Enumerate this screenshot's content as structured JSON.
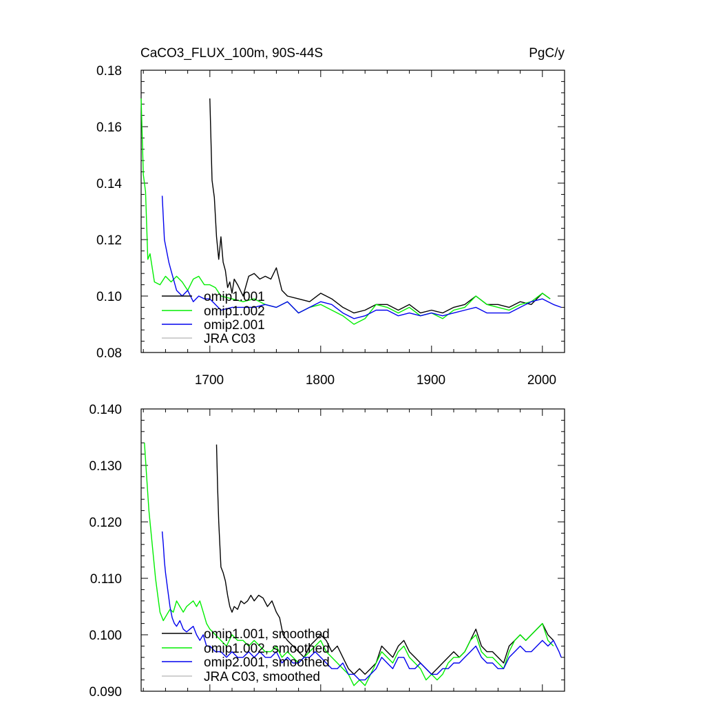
{
  "colors": {
    "omip1_001": "#000000",
    "omip1_002": "#00ee00",
    "omip2_001": "#0000ee",
    "jra_c03": "#c0c0c0"
  },
  "chart_data": [
    {
      "type": "line",
      "title": "CaCO3_FLUX_100m, 90S-44S",
      "units": "PgC/y",
      "xlim": [
        1638,
        2020
      ],
      "ylim": [
        0.08,
        0.18
      ],
      "yticks": [
        "0.08",
        "0.10",
        "0.12",
        "0.14",
        "0.16",
        "0.18"
      ],
      "xticks": [
        "1700",
        "1800",
        "1900",
        "2000"
      ],
      "grid": false,
      "legend_position": "bottom-left",
      "legend": [
        "omip1.001",
        "omip1.002",
        "omip2.001",
        "JRA C03"
      ],
      "series": [
        {
          "name": "omip1.001",
          "color": "#000000",
          "x": [
            1700,
            1702,
            1704,
            1706,
            1708,
            1710,
            1712,
            1714,
            1716,
            1718,
            1720,
            1722,
            1725,
            1730,
            1735,
            1740,
            1745,
            1750,
            1755,
            1760,
            1765,
            1770,
            1780,
            1790,
            1800,
            1810,
            1820,
            1830,
            1840,
            1850,
            1860,
            1870,
            1880,
            1890,
            1900,
            1910,
            1920,
            1930,
            1940,
            1950,
            1960,
            1970,
            1980,
            1990,
            2000,
            2007
          ],
          "y": [
            0.17,
            0.141,
            0.135,
            0.121,
            0.113,
            0.121,
            0.112,
            0.109,
            0.103,
            0.105,
            0.101,
            0.106,
            0.104,
            0.1,
            0.107,
            0.108,
            0.106,
            0.107,
            0.106,
            0.11,
            0.102,
            0.1,
            0.099,
            0.098,
            0.101,
            0.099,
            0.096,
            0.094,
            0.095,
            0.097,
            0.097,
            0.095,
            0.097,
            0.094,
            0.095,
            0.094,
            0.096,
            0.097,
            0.1,
            0.097,
            0.097,
            0.096,
            0.098,
            0.097,
            0.101,
            0.099
          ]
        },
        {
          "name": "omip1.002",
          "color": "#00ee00",
          "x": [
            1638,
            1640,
            1642,
            1644,
            1646,
            1648,
            1650,
            1655,
            1660,
            1665,
            1670,
            1675,
            1680,
            1685,
            1690,
            1695,
            1700,
            1705,
            1710,
            1720,
            1730,
            1740,
            1750,
            1760,
            1770,
            1780,
            1790,
            1800,
            1810,
            1820,
            1830,
            1840,
            1850,
            1860,
            1870,
            1880,
            1890,
            1900,
            1910,
            1920,
            1930,
            1940,
            1950,
            1960,
            1970,
            1980,
            1990,
            2000,
            2007
          ],
          "y": [
            0.17,
            0.143,
            0.137,
            0.113,
            0.115,
            0.11,
            0.105,
            0.104,
            0.107,
            0.105,
            0.107,
            0.105,
            0.102,
            0.106,
            0.107,
            0.104,
            0.104,
            0.103,
            0.1,
            0.099,
            0.098,
            0.099,
            0.097,
            0.096,
            0.098,
            0.094,
            0.096,
            0.097,
            0.095,
            0.093,
            0.09,
            0.092,
            0.097,
            0.096,
            0.094,
            0.096,
            0.093,
            0.094,
            0.092,
            0.095,
            0.096,
            0.1,
            0.097,
            0.096,
            0.095,
            0.097,
            0.098,
            0.101,
            0.099
          ]
        },
        {
          "name": "omip2.001",
          "color": "#0000ee",
          "x": [
            1657,
            1659,
            1661,
            1663,
            1665,
            1670,
            1675,
            1680,
            1685,
            1690,
            1695,
            1700,
            1710,
            1720,
            1730,
            1740,
            1750,
            1760,
            1770,
            1780,
            1790,
            1800,
            1810,
            1820,
            1830,
            1840,
            1850,
            1860,
            1870,
            1880,
            1890,
            1900,
            1910,
            1920,
            1930,
            1940,
            1950,
            1960,
            1970,
            1980,
            1990,
            2000,
            2010,
            2017
          ],
          "y": [
            0.1355,
            0.12,
            0.116,
            0.112,
            0.109,
            0.102,
            0.1,
            0.102,
            0.098,
            0.1,
            0.099,
            0.099,
            0.095,
            0.096,
            0.096,
            0.096,
            0.097,
            0.096,
            0.098,
            0.094,
            0.096,
            0.098,
            0.097,
            0.094,
            0.092,
            0.093,
            0.095,
            0.095,
            0.093,
            0.094,
            0.093,
            0.094,
            0.093,
            0.094,
            0.095,
            0.096,
            0.094,
            0.094,
            0.094,
            0.096,
            0.098,
            0.099,
            0.097,
            0.096
          ]
        }
      ]
    },
    {
      "type": "line",
      "xlim": [
        1638,
        2020
      ],
      "ylim": [
        0.09,
        0.14
      ],
      "yticks": [
        "0.090",
        "0.100",
        "0.110",
        "0.120",
        "0.130",
        "0.140"
      ],
      "grid": false,
      "legend_position": "bottom-left",
      "legend": [
        "omip1.001, smoothed",
        "omip1.002, smoothed",
        "omip2.001, smoothed",
        "JRA C03, smoothed"
      ],
      "series": [
        {
          "name": "omip1.001, smoothed",
          "color": "#000000",
          "x": [
            1706,
            1707,
            1708,
            1709,
            1710,
            1712,
            1714,
            1716,
            1718,
            1720,
            1722,
            1725,
            1728,
            1731,
            1734,
            1737,
            1740,
            1744,
            1748,
            1752,
            1756,
            1760,
            1763,
            1766,
            1770,
            1775,
            1780,
            1785,
            1790,
            1795,
            1800,
            1805,
            1810,
            1815,
            1820,
            1825,
            1830,
            1835,
            1840,
            1845,
            1850,
            1855,
            1860,
            1865,
            1870,
            1875,
            1880,
            1885,
            1890,
            1895,
            1900,
            1905,
            1910,
            1915,
            1920,
            1925,
            1930,
            1935,
            1940,
            1945,
            1950,
            1955,
            1960,
            1965,
            1970,
            1975,
            1980,
            1985,
            1990,
            1995,
            2000,
            2005,
            2010
          ],
          "y": [
            0.1337,
            0.126,
            0.12,
            0.116,
            0.112,
            0.111,
            0.1095,
            0.107,
            0.105,
            0.104,
            0.105,
            0.1045,
            0.106,
            0.1055,
            0.106,
            0.107,
            0.106,
            0.107,
            0.1065,
            0.105,
            0.106,
            0.104,
            0.103,
            0.1,
            0.099,
            0.098,
            0.097,
            0.096,
            0.098,
            0.099,
            0.1,
            0.099,
            0.097,
            0.098,
            0.096,
            0.094,
            0.093,
            0.094,
            0.093,
            0.094,
            0.095,
            0.098,
            0.097,
            0.096,
            0.098,
            0.099,
            0.097,
            0.096,
            0.095,
            0.094,
            0.093,
            0.094,
            0.095,
            0.096,
            0.097,
            0.096,
            0.097,
            0.099,
            0.101,
            0.098,
            0.097,
            0.097,
            0.096,
            0.095,
            0.098,
            0.099,
            0.1,
            0.099,
            0.1,
            0.101,
            0.102,
            0.1,
            0.099
          ]
        },
        {
          "name": "omip1.002, smoothed",
          "color": "#00ee00",
          "x": [
            1641,
            1643,
            1645,
            1647,
            1649,
            1651,
            1653,
            1655,
            1658,
            1661,
            1664,
            1667,
            1670,
            1673,
            1676,
            1679,
            1682,
            1685,
            1688,
            1691,
            1694,
            1697,
            1700,
            1705,
            1710,
            1715,
            1720,
            1725,
            1730,
            1735,
            1740,
            1745,
            1750,
            1755,
            1760,
            1765,
            1770,
            1775,
            1780,
            1785,
            1790,
            1795,
            1800,
            1805,
            1810,
            1815,
            1820,
            1825,
            1830,
            1835,
            1840,
            1845,
            1850,
            1855,
            1860,
            1865,
            1870,
            1875,
            1880,
            1885,
            1890,
            1895,
            1900,
            1905,
            1910,
            1915,
            1920,
            1925,
            1930,
            1935,
            1940,
            1945,
            1950,
            1955,
            1960,
            1965,
            1970,
            1975,
            1980,
            1985,
            1990,
            1995,
            2000,
            2005,
            2010
          ],
          "y": [
            0.134,
            0.128,
            0.122,
            0.118,
            0.114,
            0.11,
            0.107,
            0.104,
            0.1025,
            0.1035,
            0.1045,
            0.104,
            0.106,
            0.105,
            0.104,
            0.105,
            0.1055,
            0.106,
            0.105,
            0.106,
            0.104,
            0.102,
            0.101,
            0.1,
            0.099,
            0.098,
            0.1,
            0.099,
            0.099,
            0.098,
            0.099,
            0.098,
            0.097,
            0.097,
            0.098,
            0.096,
            0.097,
            0.096,
            0.095,
            0.096,
            0.097,
            0.098,
            0.099,
            0.097,
            0.096,
            0.095,
            0.094,
            0.093,
            0.091,
            0.092,
            0.091,
            0.093,
            0.095,
            0.097,
            0.096,
            0.095,
            0.097,
            0.098,
            0.096,
            0.095,
            0.094,
            0.092,
            0.093,
            0.092,
            0.093,
            0.095,
            0.096,
            0.096,
            0.097,
            0.099,
            0.1,
            0.097,
            0.096,
            0.096,
            0.095,
            0.094,
            0.097,
            0.099,
            0.1,
            0.099,
            0.1,
            0.101,
            0.102,
            0.099,
            0.098
          ]
        },
        {
          "name": "omip2.001, smoothed",
          "color": "#0000ee",
          "x": [
            1657,
            1658,
            1659,
            1660,
            1662,
            1664,
            1666,
            1668,
            1670,
            1673,
            1676,
            1679,
            1682,
            1685,
            1688,
            1691,
            1694,
            1697,
            1700,
            1705,
            1710,
            1715,
            1720,
            1725,
            1730,
            1735,
            1740,
            1745,
            1750,
            1755,
            1760,
            1765,
            1770,
            1775,
            1780,
            1785,
            1790,
            1795,
            1800,
            1805,
            1810,
            1815,
            1820,
            1825,
            1830,
            1835,
            1840,
            1845,
            1850,
            1855,
            1860,
            1865,
            1870,
            1875,
            1880,
            1885,
            1890,
            1895,
            1900,
            1905,
            1910,
            1915,
            1920,
            1925,
            1930,
            1935,
            1940,
            1945,
            1950,
            1955,
            1960,
            1965,
            1970,
            1975,
            1980,
            1985,
            1990,
            1995,
            2000,
            2005,
            2010,
            2015,
            2017
          ],
          "y": [
            0.1183,
            0.116,
            0.113,
            0.111,
            0.108,
            0.105,
            0.103,
            0.102,
            0.1015,
            0.1025,
            0.101,
            0.1005,
            0.101,
            0.1015,
            0.1,
            0.099,
            0.1,
            0.098,
            0.098,
            0.097,
            0.097,
            0.096,
            0.097,
            0.096,
            0.096,
            0.097,
            0.096,
            0.097,
            0.096,
            0.096,
            0.097,
            0.095,
            0.096,
            0.095,
            0.095,
            0.096,
            0.096,
            0.097,
            0.096,
            0.095,
            0.094,
            0.094,
            0.095,
            0.093,
            0.093,
            0.092,
            0.092,
            0.093,
            0.094,
            0.096,
            0.095,
            0.094,
            0.096,
            0.096,
            0.094,
            0.094,
            0.095,
            0.094,
            0.093,
            0.093,
            0.094,
            0.094,
            0.095,
            0.095,
            0.096,
            0.097,
            0.098,
            0.096,
            0.095,
            0.095,
            0.094,
            0.094,
            0.096,
            0.097,
            0.098,
            0.097,
            0.097,
            0.098,
            0.099,
            0.098,
            0.099,
            0.097,
            0.096
          ]
        }
      ]
    }
  ]
}
